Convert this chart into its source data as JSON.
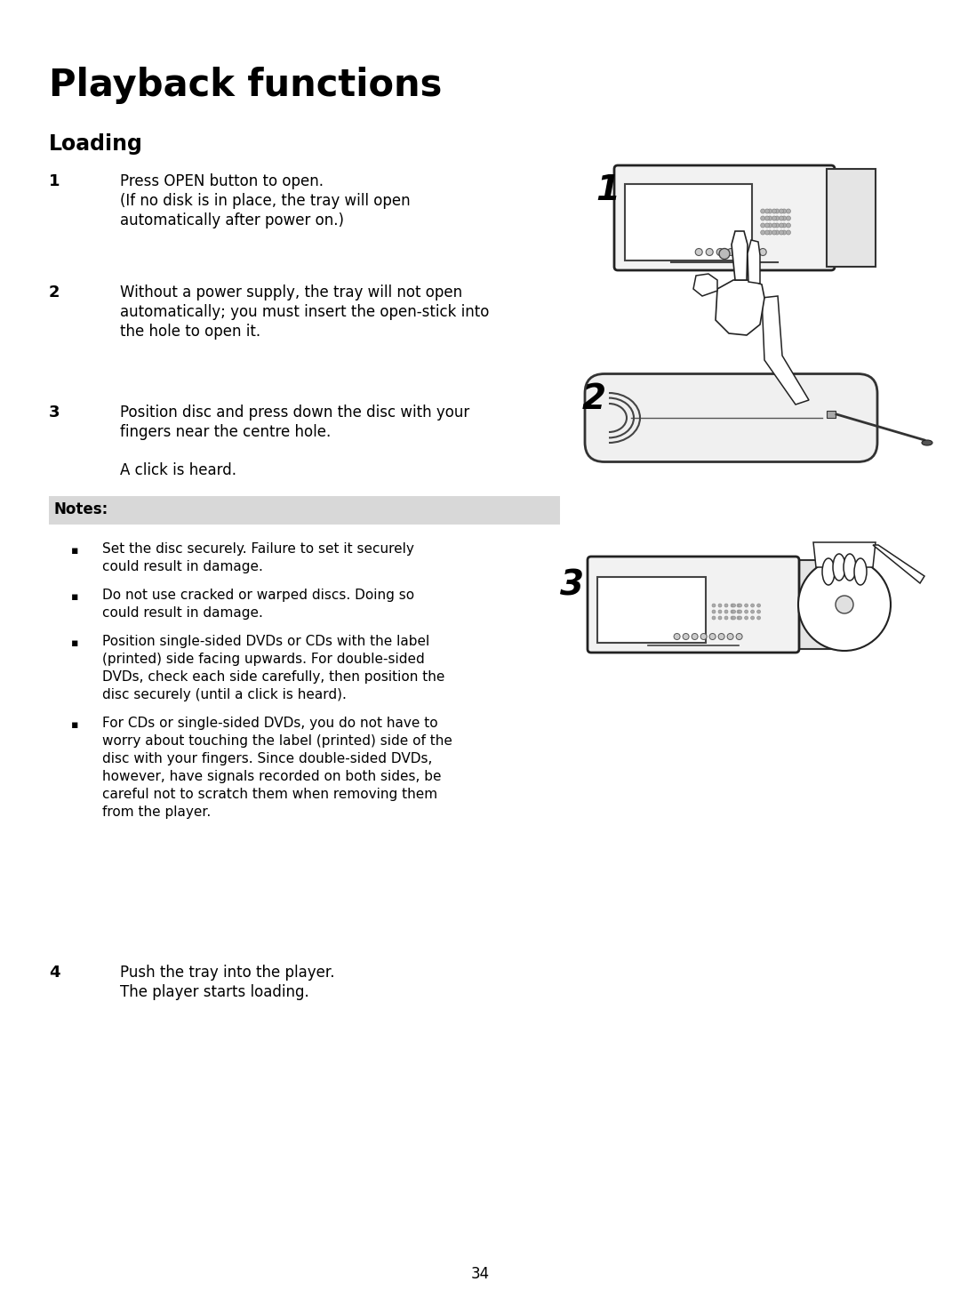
{
  "page_title": "Playback functions",
  "section_title": "Loading",
  "bg_color": "#ffffff",
  "text_color": "#000000",
  "notes_bg": "#d8d8d8",
  "page_number": "34",
  "step1_num": "1",
  "step1_line1": "Press OPEN button to open.",
  "step1_line2": "(If no disk is in place, the tray will open",
  "step1_line3": "automatically after power on.)",
  "step2_num": "2",
  "step2_line1": "Without a power supply, the tray will not open",
  "step2_line2": "automatically; you must insert the open-stick into",
  "step2_line3": "the hole to open it.",
  "step3_num": "3",
  "step3_line1": "Position disc and press down the disc with your",
  "step3_line2": "fingers near the centre hole.",
  "step3_line3": "A click is heard.",
  "step4_num": "4",
  "step4_line1": "Push the tray into the player.",
  "step4_line2": "The player starts loading.",
  "notes_title": "Notes:",
  "note1": "Set the disc securely. Failure to set it securely\ncould result in damage.",
  "note2": "Do not use cracked or warped discs. Doing so\ncould result in damage.",
  "note3": "Position single-sided DVDs or CDs with the label\n(printed) side facing upwards. For double-sided\nDVDs, check each side carefully, then position the\ndisc securely (until a click is heard).",
  "note4": "For CDs or single-sided DVDs, you do not have to\nworry about touching the label (printed) side of the\ndisc with your fingers. Since double-sided DVDs,\nhowever, have signals recorded on both sides, be\ncareful not to scratch them when removing them\nfrom the player.",
  "fig_width": 10.8,
  "fig_height": 14.78,
  "dpi": 100
}
